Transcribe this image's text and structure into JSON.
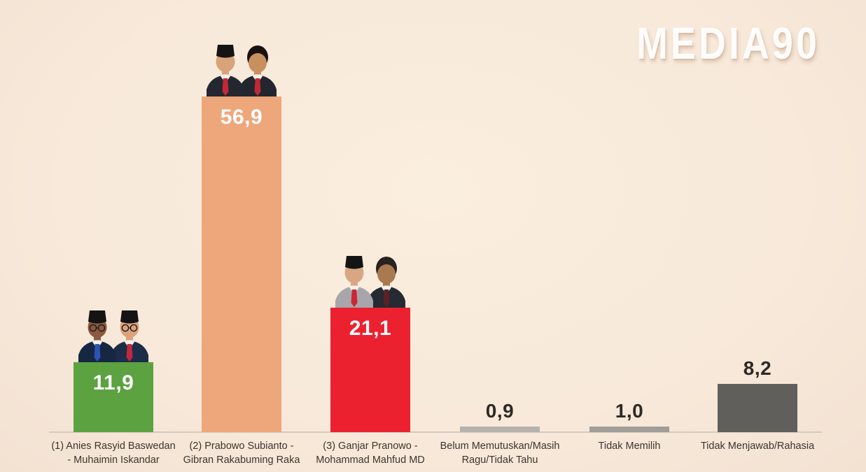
{
  "page": {
    "background": "#f8e9da"
  },
  "logo": {
    "text": "MEDIA90",
    "color": "#ffffff"
  },
  "chart_data": {
    "type": "bar",
    "title": "",
    "categories": [
      "(1) Anies Rasyid Baswedan - Muhaimin Iskandar",
      "(2) Prabowo Subianto - Gibran Rakabuming Raka",
      "(3) Ganjar Pranowo - Mohammad Mahfud MD",
      "Belum Memutuskan/Masih Ragu/Tidak Tahu",
      "Tidak Memilih",
      "Tidak Menjawab/Rahasia"
    ],
    "category_lines": [
      [
        "(1) Anies Rasyid Baswedan",
        "- Muhaimin Iskandar"
      ],
      [
        "(2) Prabowo Subianto -",
        "Gibran Rakabuming Raka"
      ],
      [
        "(3) Ganjar Pranowo -",
        "Mohammad Mahfud MD"
      ],
      [
        "Belum Memutuskan/Masih",
        "Ragu/Tidak Tahu"
      ],
      [
        "Tidak Memilih"
      ],
      [
        "Tidak Menjawab/Rahasia"
      ]
    ],
    "values": [
      11.9,
      56.9,
      21.1,
      0.9,
      1.0,
      8.2
    ],
    "value_labels": [
      "11,9",
      "56,9",
      "21,1",
      "0,9",
      "1,0",
      "8,2"
    ],
    "bar_colors": [
      "#5ca241",
      "#eda77b",
      "#ec2130",
      "#b5b1ac",
      "#a19d98",
      "#615f5c"
    ],
    "value_label_positions": [
      "inside",
      "inside",
      "inside",
      "above",
      "above",
      "above"
    ],
    "value_label_colors": [
      "#ffffff",
      "#ffffff",
      "#ffffff",
      "#2d2a26",
      "#2d2a26",
      "#2d2a26"
    ],
    "category_label_color": "#3a3530",
    "axis_color": "#d4cabf",
    "ylim": [
      0,
      60
    ],
    "grid": false,
    "legend": false,
    "portraits": [
      {
        "present": true,
        "alt": "Anies Baswedan and Muhaimin Iskandar portrait cutout",
        "persons": [
          {
            "name": "anies-baswedan",
            "peci": true,
            "glasses": true,
            "skin": "#8a5a3f",
            "hair": "#141414",
            "suit": "#182741",
            "tie": "#2a55b5"
          },
          {
            "name": "muhaimin-iskandar",
            "peci": true,
            "glasses": true,
            "skin": "#dba27c",
            "hair": "#141414",
            "suit": "#1c2c49",
            "tie": "#c22740"
          }
        ]
      },
      {
        "present": true,
        "alt": "Prabowo Subianto and Gibran Rakabuming Raka portrait cutout",
        "persons": [
          {
            "name": "prabowo-subianto",
            "peci": true,
            "glasses": false,
            "skin": "#d8a379",
            "hair": "#141414",
            "suit": "#232730",
            "tie": "#c32837"
          },
          {
            "name": "gibran-rakabuming",
            "peci": false,
            "glasses": false,
            "skin": "#c9905f",
            "hair": "#17120f",
            "suit": "#23262e",
            "tie": "#bf2a33"
          }
        ]
      },
      {
        "present": true,
        "alt": "Ganjar Pranowo and Mohammad Mahfud MD portrait cutout",
        "persons": [
          {
            "name": "ganjar-pranowo",
            "peci": true,
            "glasses": false,
            "skin": "#d9a684",
            "hair": "#e8e4de",
            "suit": "#a7a6ab",
            "tie": "#ce2633"
          },
          {
            "name": "mohammad-mahfud-md",
            "peci": false,
            "glasses": false,
            "skin": "#a9794f",
            "hair": "#2a2220",
            "suit": "#252a33",
            "tie": "#5c2027"
          }
        ]
      },
      {
        "present": false
      },
      {
        "present": false
      },
      {
        "present": false
      }
    ]
  }
}
